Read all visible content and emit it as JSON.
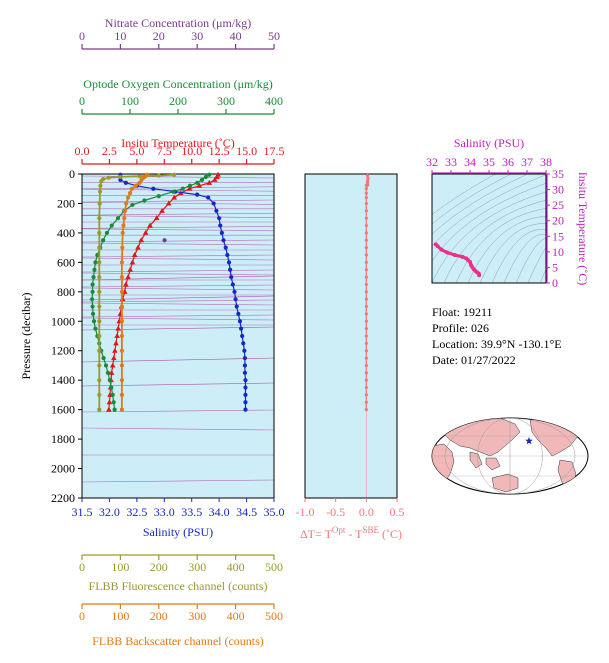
{
  "colors": {
    "nitrate": "#7a3a8e",
    "oxygen": "#1a8a3a",
    "temperature": "#e01818",
    "salinity": "#1428c8",
    "fluorescence": "#9a9a2a",
    "backscatter": "#e07a18",
    "delta_t": "#f07878",
    "ts_curve": "#e8308c",
    "ts_axis": "#c020c0",
    "plot_bg": "#cdeef7",
    "density_lines": "#b056b0",
    "map_land": "#f0b8b8",
    "map_marker": "#2020d0"
  },
  "float_info": {
    "float_line": "Float:  19211",
    "profile_line": "Profile:  026",
    "location_line": "Location:  39.9°N  -130.1°E",
    "date_line": "Date:  01/27/2022"
  },
  "marker_icon": "star-icon",
  "chart_data": [
    {
      "type": "line",
      "name": "main-profile",
      "ylabel": "Pressure (decibar)",
      "ylim": [
        2200,
        0
      ],
      "y_ticks": [
        0,
        200,
        400,
        600,
        800,
        1000,
        1200,
        1400,
        1600,
        1800,
        2000,
        2200
      ],
      "axes": [
        {
          "key": "nitrate",
          "label": "Nitrate Concentration (μm/kg)",
          "range": [
            0,
            50
          ],
          "ticks": [
            0,
            10,
            20,
            30,
            40,
            50
          ]
        },
        {
          "key": "oxygen",
          "label": "Optode Oxygen Concentration (μm/kg)",
          "range": [
            0,
            400
          ],
          "ticks": [
            0,
            100,
            200,
            300,
            400
          ]
        },
        {
          "key": "temperature",
          "label": "Insitu Temperature (˚C)",
          "range": [
            0,
            17.5
          ],
          "ticks": [
            "0.0",
            "2.5",
            "5.0",
            "7.5",
            "10.0",
            "12.5",
            "15.0",
            "17.5"
          ]
        },
        {
          "key": "salinity",
          "label": "Salinity (PSU)",
          "range": [
            31.5,
            35.0
          ],
          "ticks": [
            "31.5",
            "32.0",
            "32.5",
            "33.0",
            "33.5",
            "34.0",
            "34.5",
            "35.0"
          ]
        },
        {
          "key": "fluorescence",
          "label": "FLBB Fluorescence channel (counts)",
          "range": [
            0,
            500
          ],
          "ticks": [
            0,
            100,
            200,
            300,
            400,
            500
          ]
        },
        {
          "key": "backscatter",
          "label": "FLBB Backscatter channel (counts)",
          "range": [
            0,
            500
          ],
          "ticks": [
            0,
            100,
            200,
            300,
            400,
            500
          ]
        }
      ],
      "series": [
        {
          "key": "temperature",
          "axis": "temperature",
          "marker": "triangle",
          "points": [
            [
              12.4,
              5
            ],
            [
              12.3,
              20
            ],
            [
              12.1,
              40
            ],
            [
              11.6,
              60
            ],
            [
              10.7,
              80
            ],
            [
              9.8,
              100
            ],
            [
              9.0,
              130
            ],
            [
              8.4,
              160
            ],
            [
              7.9,
              200
            ],
            [
              7.3,
              250
            ],
            [
              6.8,
              300
            ],
            [
              6.2,
              350
            ],
            [
              5.8,
              400
            ],
            [
              5.4,
              450
            ],
            [
              5.1,
              500
            ],
            [
              4.8,
              550
            ],
            [
              4.6,
              600
            ],
            [
              4.4,
              650
            ],
            [
              4.2,
              700
            ],
            [
              4.0,
              750
            ],
            [
              3.9,
              800
            ],
            [
              3.7,
              850
            ],
            [
              3.6,
              900
            ],
            [
              3.5,
              950
            ],
            [
              3.4,
              1000
            ],
            [
              3.3,
              1050
            ],
            [
              3.2,
              1100
            ],
            [
              3.1,
              1150
            ],
            [
              3.0,
              1200
            ],
            [
              2.9,
              1250
            ],
            [
              2.8,
              1300
            ],
            [
              2.7,
              1350
            ],
            [
              2.65,
              1400
            ],
            [
              2.6,
              1450
            ],
            [
              2.55,
              1500
            ],
            [
              2.5,
              1550
            ],
            [
              2.45,
              1600
            ]
          ]
        },
        {
          "key": "salinity",
          "axis": "salinity",
          "marker": "circle",
          "points": [
            [
              32.2,
              5
            ],
            [
              32.2,
              20
            ],
            [
              32.2,
              40
            ],
            [
              32.3,
              60
            ],
            [
              32.5,
              80
            ],
            [
              32.8,
              100
            ],
            [
              33.2,
              120
            ],
            [
              33.6,
              140
            ],
            [
              33.8,
              160
            ],
            [
              33.9,
              200
            ],
            [
              33.95,
              250
            ],
            [
              34.0,
              300
            ],
            [
              34.02,
              350
            ],
            [
              34.05,
              400
            ],
            [
              34.08,
              450
            ],
            [
              34.12,
              500
            ],
            [
              34.15,
              550
            ],
            [
              34.18,
              600
            ],
            [
              34.2,
              650
            ],
            [
              34.22,
              700
            ],
            [
              34.25,
              750
            ],
            [
              34.28,
              800
            ],
            [
              34.3,
              850
            ],
            [
              34.32,
              900
            ],
            [
              34.35,
              950
            ],
            [
              34.38,
              1000
            ],
            [
              34.4,
              1050
            ],
            [
              34.42,
              1100
            ],
            [
              34.44,
              1150
            ],
            [
              34.46,
              1200
            ],
            [
              34.47,
              1250
            ],
            [
              34.47,
              1300
            ],
            [
              34.47,
              1350
            ],
            [
              34.48,
              1400
            ],
            [
              34.48,
              1450
            ],
            [
              34.48,
              1500
            ],
            [
              34.48,
              1550
            ],
            [
              34.48,
              1600
            ]
          ]
        },
        {
          "key": "oxygen",
          "axis": "oxygen",
          "marker": "circle",
          "points": [
            [
              265,
              5
            ],
            [
              258,
              20
            ],
            [
              250,
              40
            ],
            [
              240,
              60
            ],
            [
              225,
              80
            ],
            [
              210,
              100
            ],
            [
              190,
              120
            ],
            [
              160,
              150
            ],
            [
              130,
              180
            ],
            [
              105,
              210
            ],
            [
              88,
              250
            ],
            [
              75,
              300
            ],
            [
              62,
              350
            ],
            [
              52,
              400
            ],
            [
              44,
              450
            ],
            [
              38,
              500
            ],
            [
              32,
              550
            ],
            [
              28,
              600
            ],
            [
              26,
              650
            ],
            [
              24,
              700
            ],
            [
              22,
              750
            ],
            [
              22,
              800
            ],
            [
              21,
              850
            ],
            [
              22,
              900
            ],
            [
              23,
              950
            ],
            [
              25,
              1000
            ],
            [
              28,
              1050
            ],
            [
              32,
              1100
            ],
            [
              36,
              1150
            ],
            [
              40,
              1200
            ],
            [
              45,
              1250
            ],
            [
              50,
              1300
            ],
            [
              54,
              1350
            ],
            [
              58,
              1400
            ],
            [
              61,
              1450
            ],
            [
              64,
              1500
            ],
            [
              66,
              1550
            ],
            [
              68,
              1600
            ]
          ]
        },
        {
          "key": "nitrate",
          "axis": "nitrate",
          "marker": "circle",
          "points": [
            [
              21.5,
              450
            ]
          ]
        },
        {
          "key": "fluorescence",
          "axis": "fluorescence",
          "marker": "circle",
          "points": [
            [
              240,
              5
            ],
            [
              200,
              10
            ],
            [
              150,
              15
            ],
            [
              100,
              20
            ],
            [
              70,
              25
            ],
            [
              55,
              35
            ],
            [
              50,
              50
            ],
            [
              48,
              80
            ],
            [
              47,
              120
            ],
            [
              46,
              200
            ],
            [
              45,
              300
            ],
            [
              45,
              400
            ],
            [
              45,
              500
            ],
            [
              45,
              600
            ],
            [
              45,
              700
            ],
            [
              45,
              800
            ],
            [
              45,
              900
            ],
            [
              45,
              1000
            ],
            [
              45,
              1100
            ],
            [
              45,
              1200
            ],
            [
              45,
              1300
            ],
            [
              45,
              1400
            ],
            [
              45,
              1500
            ],
            [
              45,
              1600
            ]
          ]
        },
        {
          "key": "backscatter",
          "axis": "backscatter",
          "marker": "circle",
          "points": [
            [
              170,
              5
            ],
            [
              165,
              15
            ],
            [
              160,
              25
            ],
            [
              155,
              40
            ],
            [
              150,
              60
            ],
            [
              140,
              80
            ],
            [
              130,
              100
            ],
            [
              125,
              130
            ],
            [
              120,
              160
            ],
            [
              115,
              200
            ],
            [
              112,
              250
            ],
            [
              110,
              300
            ],
            [
              108,
              350
            ],
            [
              106,
              400
            ],
            [
              105,
              500
            ],
            [
              104,
              600
            ],
            [
              104,
              700
            ],
            [
              104,
              800
            ],
            [
              104,
              900
            ],
            [
              104,
              1000
            ],
            [
              104,
              1100
            ],
            [
              104,
              1200
            ],
            [
              104,
              1300
            ],
            [
              104,
              1400
            ],
            [
              104,
              1500
            ],
            [
              104,
              1600
            ]
          ]
        }
      ]
    },
    {
      "type": "line",
      "name": "delta-t",
      "xlabel": "ΔT= T",
      "xlabel_sup1": "Opt",
      "xlabel_mid": " - T",
      "xlabel_sup2": "SBE",
      "xlabel_tail": " (˚C)",
      "xlim": [
        -1.0,
        0.5
      ],
      "x_ticks": [
        "-1.0",
        "-0.5",
        "0.0",
        "0.5"
      ],
      "ylim": [
        2200,
        0
      ],
      "points": [
        [
          0.02,
          10
        ],
        [
          0.03,
          30
        ],
        [
          0.02,
          50
        ],
        [
          0.01,
          80
        ],
        [
          0.0,
          100
        ],
        [
          0.0,
          130
        ],
        [
          0.0,
          160
        ],
        [
          0.0,
          200
        ],
        [
          0.0,
          250
        ],
        [
          0.0,
          300
        ],
        [
          0.0,
          350
        ],
        [
          0.0,
          400
        ],
        [
          0.0,
          450
        ],
        [
          0.0,
          500
        ],
        [
          0.0,
          550
        ],
        [
          0.0,
          600
        ],
        [
          0.0,
          650
        ],
        [
          0.0,
          700
        ],
        [
          0.0,
          750
        ],
        [
          0.0,
          800
        ],
        [
          0.0,
          850
        ],
        [
          0.0,
          900
        ],
        [
          0.0,
          950
        ],
        [
          0.0,
          1000
        ],
        [
          0.0,
          1050
        ],
        [
          0.0,
          1100
        ],
        [
          0.0,
          1150
        ],
        [
          0.0,
          1200
        ],
        [
          0.0,
          1250
        ],
        [
          0.0,
          1300
        ],
        [
          0.0,
          1350
        ],
        [
          0.0,
          1400
        ],
        [
          0.0,
          1450
        ],
        [
          0.0,
          1500
        ],
        [
          0.0,
          1550
        ],
        [
          0.0,
          1600
        ]
      ]
    },
    {
      "type": "line",
      "name": "ts-diagram",
      "title": "Salinity (PSU)",
      "ylabel": "Insitu Temperature (˚C)",
      "xlim": [
        32,
        38
      ],
      "x_ticks": [
        "32",
        "33",
        "34",
        "35",
        "36",
        "37",
        "38"
      ],
      "ylim": [
        0,
        35
      ],
      "y_ticks": [
        "0",
        "5",
        "10",
        "15",
        "20",
        "25",
        "30",
        "35"
      ],
      "points": [
        [
          32.2,
          12.4
        ],
        [
          32.3,
          11.8
        ],
        [
          32.5,
          10.7
        ],
        [
          32.8,
          9.8
        ],
        [
          33.2,
          9.0
        ],
        [
          33.6,
          8.4
        ],
        [
          33.8,
          7.9
        ],
        [
          33.9,
          7.3
        ],
        [
          34.0,
          6.8
        ],
        [
          34.05,
          5.8
        ],
        [
          34.12,
          5.1
        ],
        [
          34.2,
          4.4
        ],
        [
          34.28,
          3.9
        ],
        [
          34.38,
          3.4
        ],
        [
          34.46,
          3.0
        ],
        [
          34.48,
          2.5
        ]
      ]
    }
  ]
}
